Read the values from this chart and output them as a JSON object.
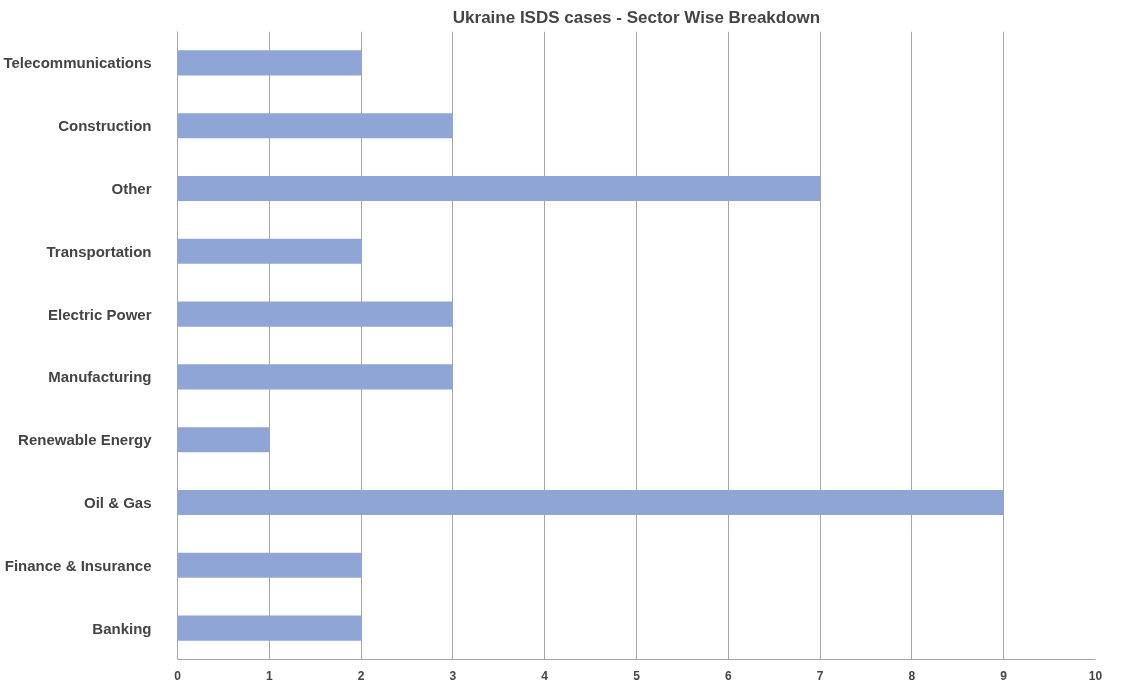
{
  "chart_data": {
    "type": "bar",
    "orientation": "horizontal",
    "title": "Ukraine ISDS cases - Sector Wise Breakdown",
    "categories": [
      "Telecommunications",
      "Construction",
      "Other",
      "Transportation",
      "Electric Power",
      "Manufacturing",
      "Renewable Energy",
      "Oil & Gas",
      "Finance & Insurance",
      "Banking"
    ],
    "values": [
      2,
      3,
      7,
      2,
      3,
      3,
      1,
      9,
      2,
      2
    ],
    "color": "#8fa5d6",
    "xlim": [
      0,
      10
    ],
    "xticks": [
      0,
      1,
      2,
      3,
      4,
      5,
      6,
      7,
      8,
      9,
      10
    ],
    "grid": "x"
  }
}
